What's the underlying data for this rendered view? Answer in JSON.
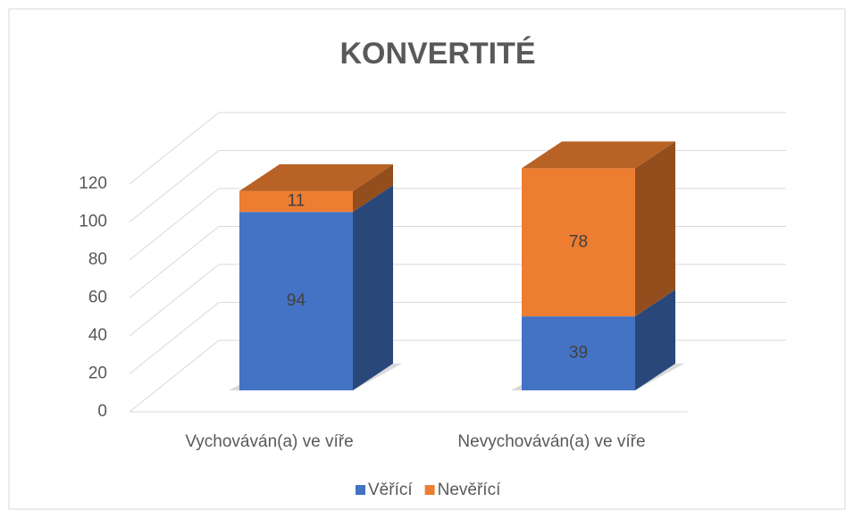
{
  "chart_data": {
    "type": "bar3d_stacked",
    "title": "KONVERTITÉ",
    "categories": [
      "Vychováván(a) ve víře",
      "Nevychováván(a) ve víře"
    ],
    "series": [
      {
        "name": "Věřící",
        "color": "#4472c4",
        "values": [
          94,
          39
        ]
      },
      {
        "name": "Nevěřící",
        "color": "#ed7d31",
        "values": [
          11,
          78
        ]
      }
    ],
    "ylim": [
      0,
      120
    ],
    "yticks": [
      0,
      20,
      40,
      60,
      80,
      100,
      120
    ],
    "grid": true,
    "legend": "bottom"
  }
}
